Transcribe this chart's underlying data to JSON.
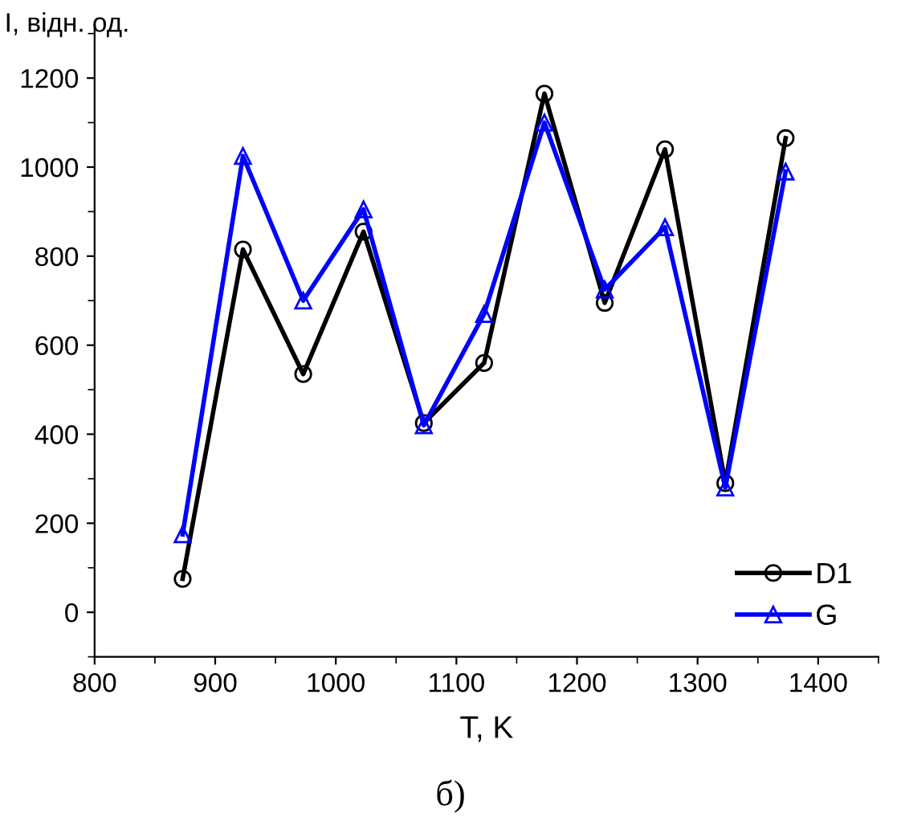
{
  "chart_data": {
    "type": "line",
    "ylabel": "I, відн. од.",
    "xlabel": "T, K",
    "annotations": [
      "б)"
    ],
    "x": [
      873,
      923,
      973,
      1023,
      1073,
      1123,
      1173,
      1223,
      1273,
      1323,
      1373
    ],
    "series": [
      {
        "name": "D1",
        "color": "#000000",
        "marker": "circle",
        "values": [
          75,
          815,
          535,
          855,
          425,
          560,
          1165,
          695,
          1040,
          290,
          1065
        ]
      },
      {
        "name": "G",
        "color": "#0000ff",
        "marker": "triangle",
        "values": [
          175,
          1025,
          700,
          905,
          420,
          670,
          1100,
          725,
          865,
          280,
          990
        ]
      }
    ],
    "xlim": [
      800,
      1450
    ],
    "ylim": [
      -100,
      1320
    ],
    "xticks": [
      800,
      900,
      1000,
      1100,
      1200,
      1300,
      1400
    ],
    "yticks": [
      0,
      200,
      400,
      600,
      800,
      1000,
      1200
    ],
    "grid": false,
    "legend": "bottom right",
    "line_style": "solid"
  }
}
